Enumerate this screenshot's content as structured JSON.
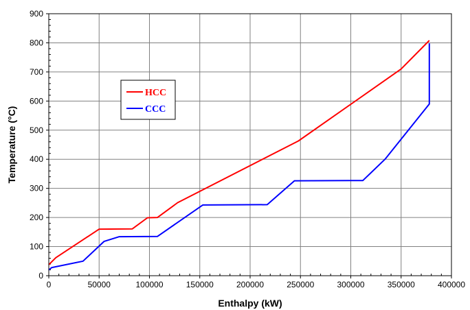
{
  "chart_data": {
    "type": "line",
    "title": "",
    "xlabel": "Enthalpy (kW)",
    "ylabel": "Temperature (°C)",
    "xlim": [
      0,
      400000
    ],
    "ylim": [
      0,
      900
    ],
    "xticks": [
      0,
      50000,
      100000,
      150000,
      200000,
      250000,
      300000,
      350000,
      400000
    ],
    "yticks": [
      0,
      100,
      200,
      300,
      400,
      500,
      600,
      700,
      800,
      900
    ],
    "grid": true,
    "legend_position": "left-middle",
    "series": [
      {
        "name": "HCC",
        "color": "#ff0000",
        "points": [
          [
            0,
            38
          ],
          [
            7000,
            62
          ],
          [
            50000,
            160
          ],
          [
            83000,
            161
          ],
          [
            98000,
            199
          ],
          [
            108000,
            200
          ],
          [
            128000,
            251
          ],
          [
            248000,
            463
          ],
          [
            350000,
            710
          ],
          [
            378000,
            808
          ]
        ]
      },
      {
        "name": "CCC",
        "color": "#0000ff",
        "points": [
          [
            0,
            20
          ],
          [
            3000,
            28
          ],
          [
            34000,
            50
          ],
          [
            55000,
            118
          ],
          [
            70000,
            134
          ],
          [
            108000,
            135
          ],
          [
            153000,
            243
          ],
          [
            217000,
            244
          ],
          [
            244000,
            326
          ],
          [
            312000,
            327
          ],
          [
            334000,
            400
          ],
          [
            378000,
            590
          ],
          [
            378000,
            798
          ]
        ]
      }
    ]
  }
}
